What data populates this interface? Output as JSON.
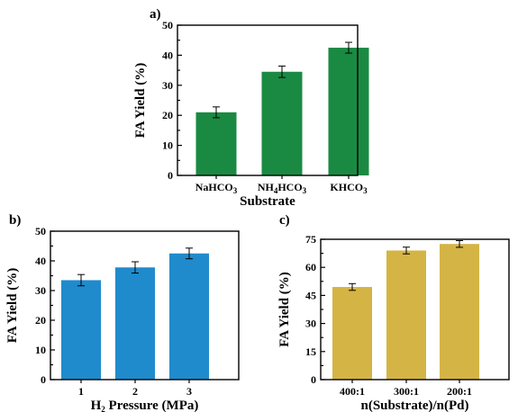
{
  "chart_data": [
    {
      "type": "bar",
      "panel_label": "a)",
      "xlabel": "Substrate",
      "ylabel": "FA Yield (%)",
      "ylim": [
        0,
        50
      ],
      "yticks": [
        0,
        10,
        20,
        30,
        40,
        50
      ],
      "categories": [
        {
          "base": "NaHCO",
          "sub": "3",
          "tail": ""
        },
        {
          "base": "NH",
          "sub": "4",
          "tail": "HCO",
          "sub2": "3"
        },
        {
          "base": "KHCO",
          "sub": "3",
          "tail": ""
        }
      ],
      "values": [
        21,
        34.5,
        42.5
      ],
      "errors": [
        1.8,
        1.9,
        1.8
      ],
      "color": "#1a8a43"
    },
    {
      "type": "bar",
      "panel_label": "b)",
      "xlabel_parts": {
        "base": "H",
        "sub": "2",
        "tail": " Pressure (MPa)"
      },
      "ylabel": "FA Yield (%)",
      "ylim": [
        0,
        50
      ],
      "yticks": [
        0,
        10,
        20,
        30,
        40,
        50
      ],
      "categories": [
        "1",
        "2",
        "3"
      ],
      "values": [
        33.5,
        37.8,
        42.5
      ],
      "errors": [
        1.9,
        1.9,
        1.8
      ],
      "color": "#1f8bcc"
    },
    {
      "type": "bar",
      "panel_label": "c)",
      "xlabel": "n(Substrate)/n(Pd)",
      "ylabel": "FA Yield (%)",
      "ylim": [
        0,
        75
      ],
      "yticks": [
        0,
        15,
        30,
        45,
        60,
        75
      ],
      "categories": [
        "400:1",
        "300:1",
        "200:1"
      ],
      "values": [
        49.5,
        69,
        72.5
      ],
      "errors": [
        1.8,
        1.8,
        1.8
      ],
      "color": "#d4b445"
    }
  ]
}
